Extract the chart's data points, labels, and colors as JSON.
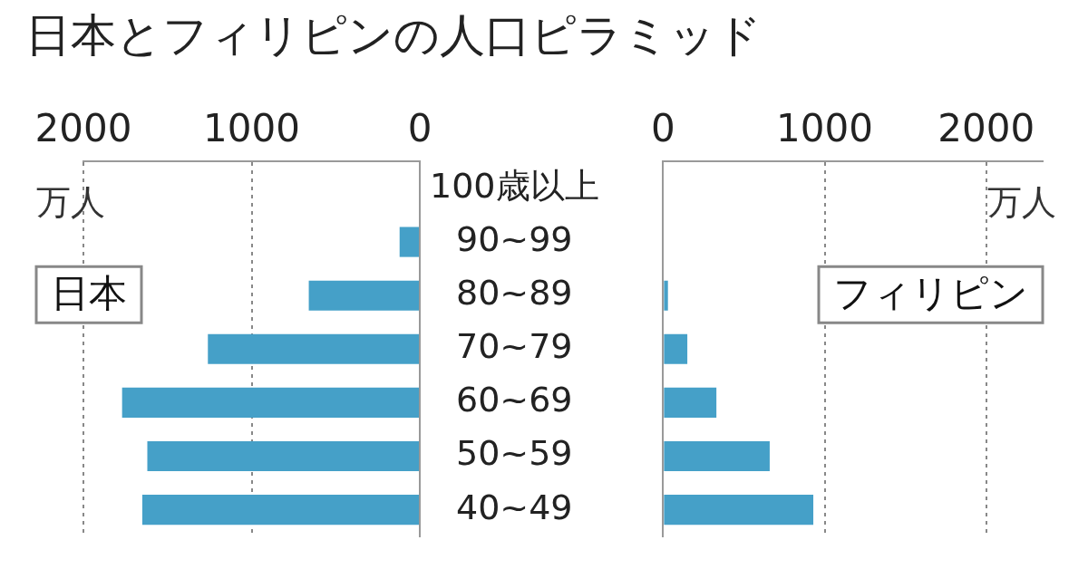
{
  "chart_data": [
    {
      "type": "bar",
      "title": "日本とフィリピンの人口ピラミッド",
      "orientation": "horizontal",
      "categories": [
        "100歳以上",
        "90~99",
        "80~89",
        "70~79",
        "60~69",
        "50~59",
        "40~49"
      ],
      "series": [
        {
          "name": "日本",
          "color": "#45a0c8",
          "values": [
            0,
            120,
            660,
            1260,
            1770,
            1620,
            1650
          ]
        }
      ],
      "xlabel": "万人",
      "xlim": [
        2000,
        0
      ],
      "xticks": [
        2000,
        1000,
        0
      ],
      "grid": "x"
    },
    {
      "type": "bar",
      "orientation": "horizontal",
      "categories": [
        null,
        null,
        null,
        null,
        null,
        null,
        null
      ],
      "series": [
        {
          "name": "フィリピン",
          "color": "#45a0c8",
          "values": [
            0,
            0,
            30,
            150,
            330,
            660,
            930
          ]
        }
      ],
      "xlabel": "万人",
      "xlim": [
        0,
        2350
      ],
      "xticks": [
        0,
        1000,
        2000
      ],
      "grid": "x"
    }
  ]
}
